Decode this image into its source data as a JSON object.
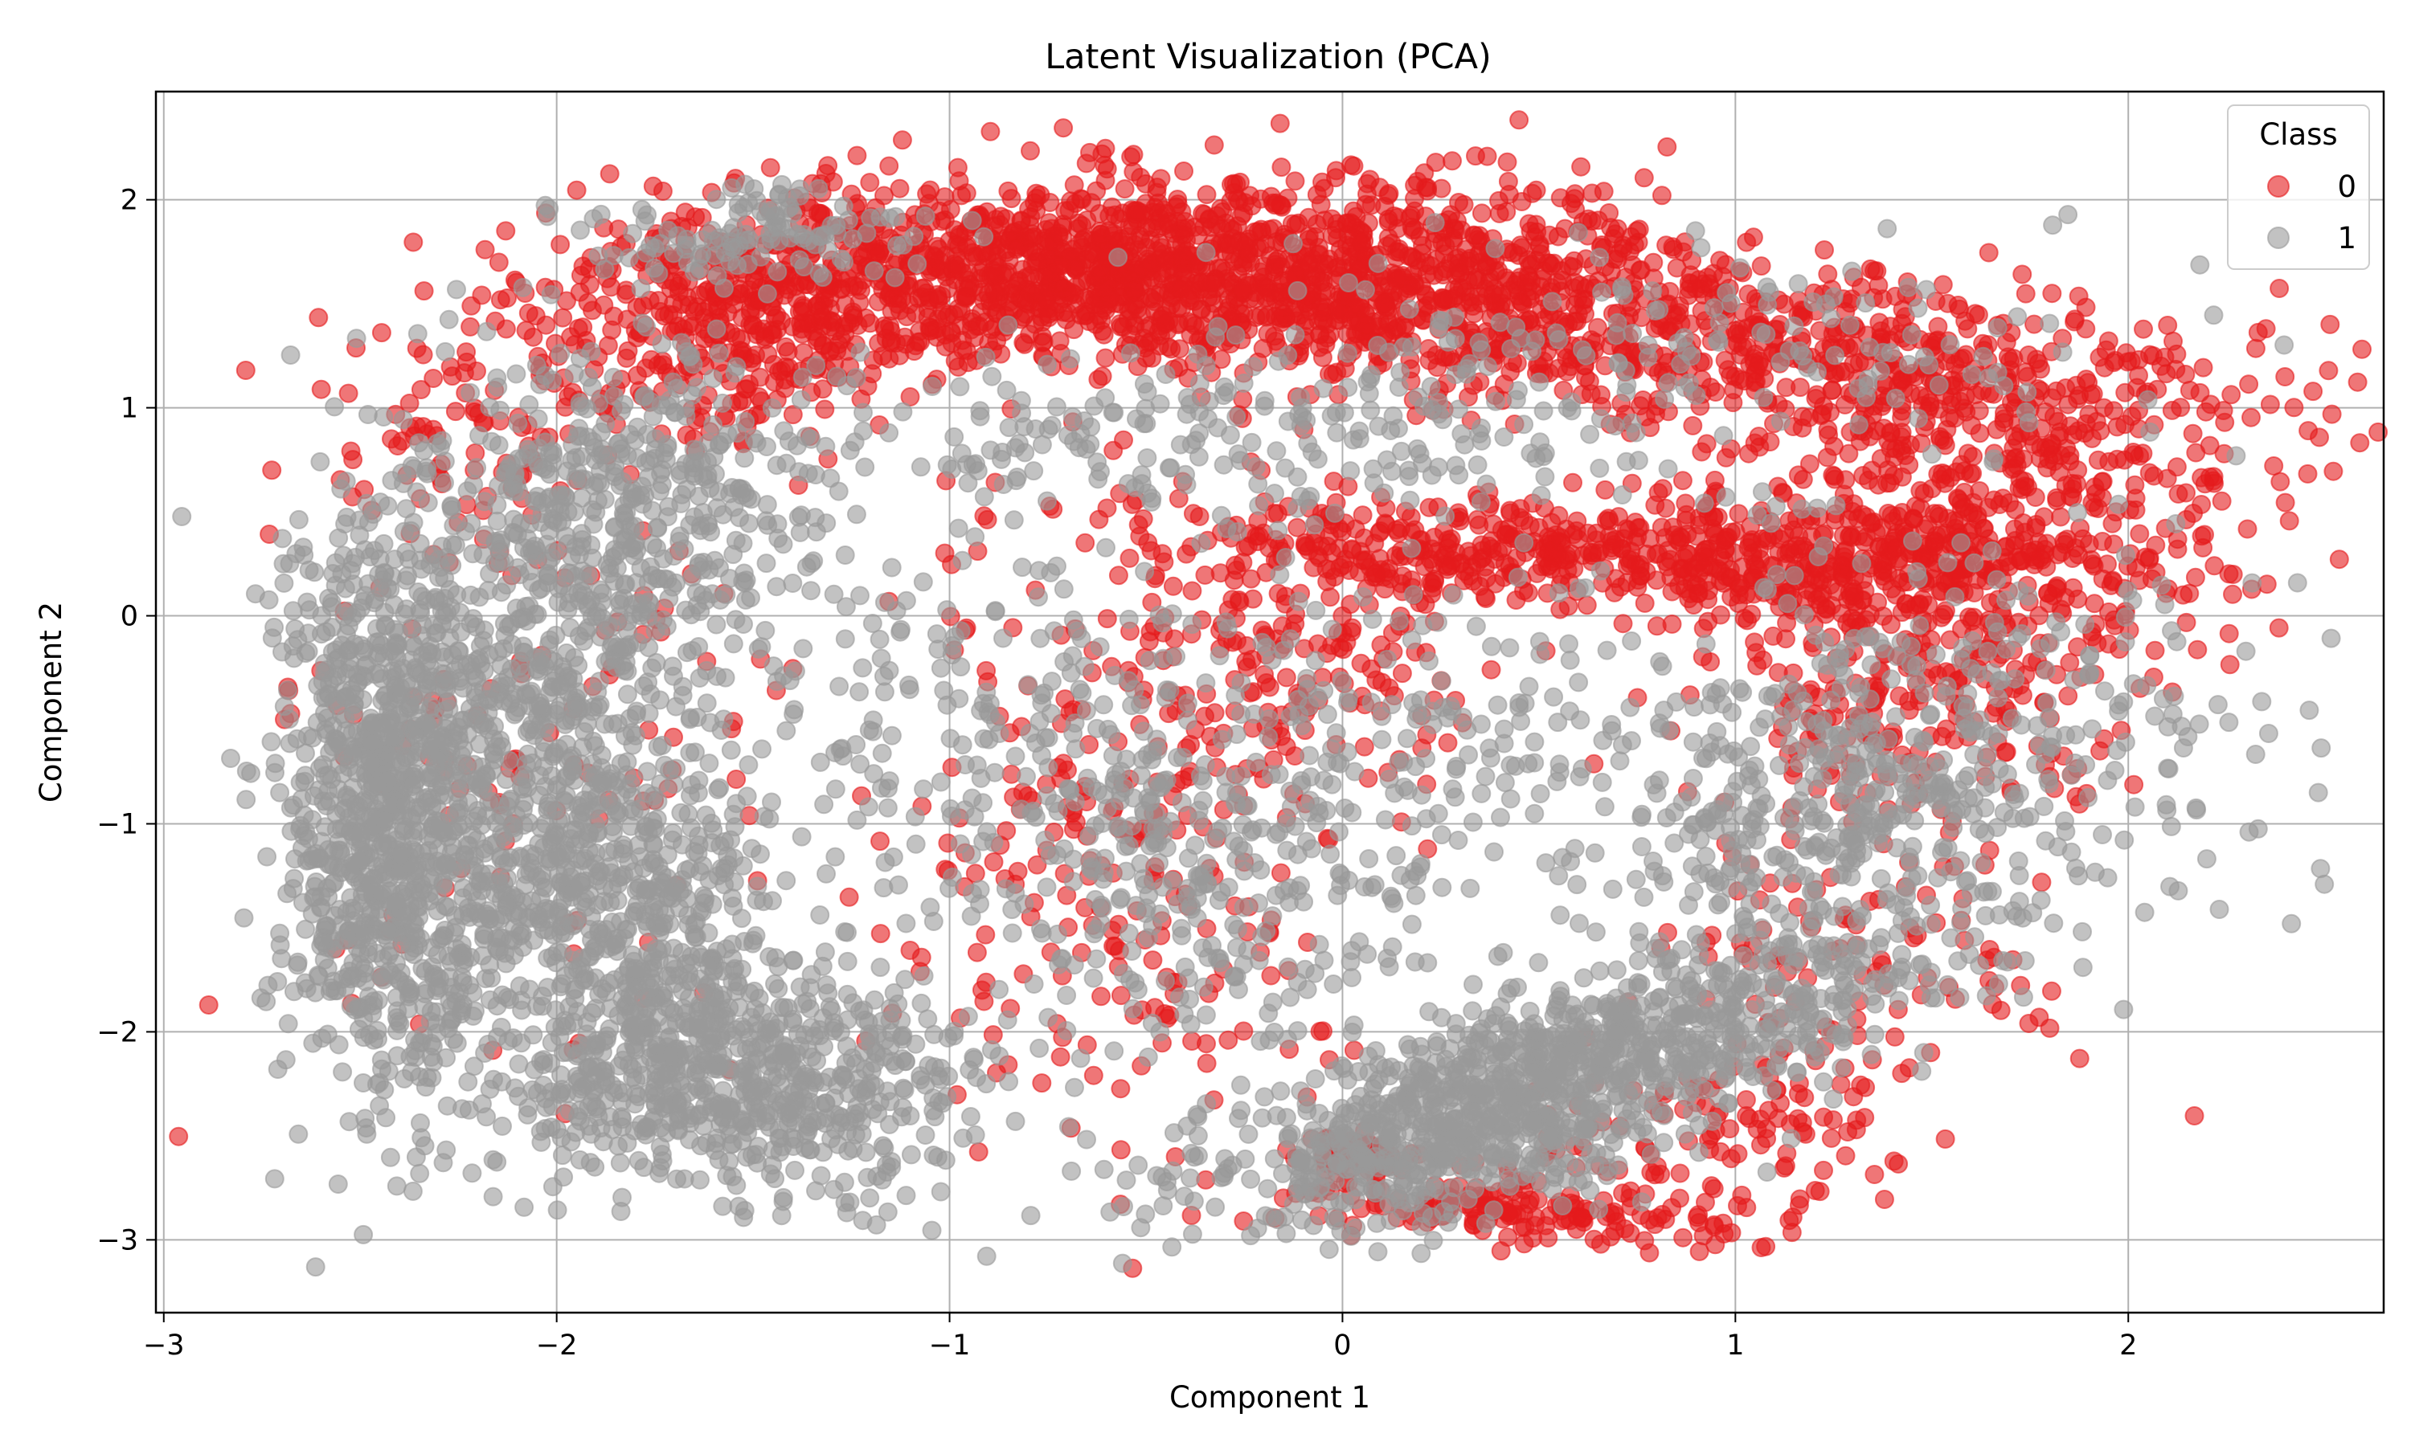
{
  "chart_data": {
    "type": "scatter",
    "title": "Latent Visualization (PCA)",
    "xlabel": "Component 1",
    "ylabel": "Component 2",
    "xlim": [
      -3.02,
      2.65
    ],
    "ylim": [
      -3.35,
      2.52
    ],
    "xticks": [
      -3,
      -2,
      -1,
      0,
      1,
      2
    ],
    "yticks": [
      -3,
      -2,
      -1,
      0,
      1,
      2
    ],
    "grid": true,
    "legend": {
      "title": "Class",
      "placement": "top-right",
      "entries": [
        {
          "label": "0",
          "color": "#e41a1c"
        },
        {
          "label": "1",
          "color": "#999999"
        }
      ]
    },
    "series": [
      {
        "name": "0",
        "color": "#e41a1c",
        "opacity": 0.6,
        "clusters": [
          {
            "cx": -0.55,
            "cy": 1.65,
            "sx": 0.55,
            "sy": 0.22,
            "n": 1400,
            "rot": -2
          },
          {
            "cx": -1.55,
            "cy": 1.4,
            "sx": 0.3,
            "sy": 0.25,
            "n": 350,
            "rot": 0
          },
          {
            "cx": 0.35,
            "cy": 1.55,
            "sx": 0.35,
            "sy": 0.3,
            "n": 400,
            "rot": -10
          },
          {
            "cx": 1.25,
            "cy": 1.25,
            "sx": 0.55,
            "sy": 0.2,
            "n": 500,
            "rot": -12
          },
          {
            "cx": 0.75,
            "cy": 0.3,
            "sx": 0.6,
            "sy": 0.13,
            "n": 650,
            "rot": -4
          },
          {
            "cx": 1.65,
            "cy": 0.55,
            "sx": 0.35,
            "sy": 0.35,
            "n": 450,
            "rot": -20
          },
          {
            "cx": 1.45,
            "cy": -0.35,
            "sx": 0.3,
            "sy": 0.3,
            "n": 250,
            "rot": 0
          },
          {
            "cx": -0.55,
            "cy": -1.1,
            "sx": 0.3,
            "sy": 0.75,
            "n": 260,
            "rot": 0
          },
          {
            "cx": -0.1,
            "cy": -0.2,
            "sx": 0.2,
            "sy": 0.3,
            "n": 140,
            "rot": 0
          },
          {
            "cx": 0.45,
            "cy": -2.85,
            "sx": 0.3,
            "sy": 0.07,
            "n": 160,
            "rot": -5
          },
          {
            "cx": 0.03,
            "cy": -2.6,
            "sx": 0.06,
            "sy": 0.05,
            "n": 70,
            "rot": 0
          },
          {
            "cx": 0.95,
            "cy": -2.5,
            "sx": 0.35,
            "sy": 0.2,
            "n": 140,
            "rot": 30
          },
          {
            "cx": 1.35,
            "cy": -1.6,
            "sx": 0.25,
            "sy": 0.3,
            "n": 90,
            "rot": 0
          },
          {
            "cx": -2.05,
            "cy": -0.6,
            "sx": 0.35,
            "sy": 0.8,
            "n": 120,
            "rot": 0
          },
          {
            "cx": -2.2,
            "cy": 0.9,
            "sx": 0.2,
            "sy": 0.3,
            "n": 90,
            "rot": 0
          }
        ]
      },
      {
        "name": "1",
        "color": "#999999",
        "opacity": 0.6,
        "clusters": [
          {
            "cx": -2.45,
            "cy": -0.9,
            "sx": 0.13,
            "sy": 0.7,
            "n": 900,
            "rot": 0
          },
          {
            "cx": -2.05,
            "cy": -0.6,
            "sx": 0.2,
            "sy": 0.8,
            "n": 800,
            "rot": -10
          },
          {
            "cx": -1.55,
            "cy": -2.2,
            "sx": 0.3,
            "sy": 0.25,
            "n": 700,
            "rot": -30
          },
          {
            "cx": -1.8,
            "cy": -1.5,
            "sx": 0.2,
            "sy": 0.4,
            "n": 400,
            "rot": 0
          },
          {
            "cx": -1.9,
            "cy": 0.6,
            "sx": 0.3,
            "sy": 0.35,
            "n": 300,
            "rot": 0
          },
          {
            "cx": -1.5,
            "cy": 1.85,
            "sx": 0.25,
            "sy": 0.12,
            "n": 120,
            "rot": 0
          },
          {
            "cx": 0.6,
            "cy": -2.15,
            "sx": 0.55,
            "sy": 0.18,
            "n": 900,
            "rot": 32
          },
          {
            "cx": 1.2,
            "cy": -0.9,
            "sx": 0.3,
            "sy": 0.35,
            "n": 300,
            "rot": 0
          },
          {
            "cx": 0.25,
            "cy": -2.6,
            "sx": 0.3,
            "sy": 0.15,
            "n": 300,
            "rot": 20
          },
          {
            "cx": -0.35,
            "cy": -1.2,
            "sx": 0.35,
            "sy": 0.55,
            "n": 350,
            "rot": 0
          },
          {
            "cx": -0.9,
            "cy": -0.5,
            "sx": 0.5,
            "sy": 0.5,
            "n": 200,
            "rot": 0
          },
          {
            "cx": -0.3,
            "cy": 0.8,
            "sx": 0.7,
            "sy": 0.25,
            "n": 250,
            "rot": 0
          },
          {
            "cx": 0.8,
            "cy": 1.3,
            "sx": 0.6,
            "sy": 0.25,
            "n": 150,
            "rot": 0
          },
          {
            "cx": 1.7,
            "cy": -0.5,
            "sx": 0.4,
            "sy": 0.5,
            "n": 220,
            "rot": 0
          },
          {
            "cx": 0.4,
            "cy": -0.6,
            "sx": 0.4,
            "sy": 0.4,
            "n": 150,
            "rot": 0
          }
        ]
      }
    ]
  }
}
